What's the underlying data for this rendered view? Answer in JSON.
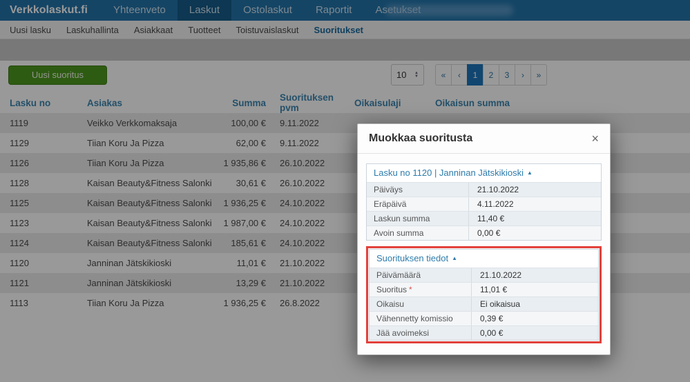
{
  "colors": {
    "navbar_bg": "#2374a9",
    "navbar_active_bg": "#175d89",
    "navbar_text": "#cfe2ef",
    "brand_text": "#ffffff",
    "subnav_bg": "#f4f4f4",
    "subnav_text": "#4a4a4a",
    "subnav_active_text": "#1b6b9e",
    "band_bg": "#c9c9c9",
    "content_bg": "#ffffff",
    "stripe_bg": "#ececec",
    "header_text": "#3d85b0",
    "row_text": "#4c4c4c",
    "button_green": "#4d981e",
    "button_green_border": "#3f7d17",
    "button_text": "#f2f7ec",
    "page_active_bg": "#1d76bb",
    "link_blue": "#2e7cab",
    "red_highlight": "#e2403a",
    "backdrop": "rgba(0,0,0,0.40)"
  },
  "topnav": {
    "brand": "Verkkolaskut.fi",
    "items": [
      {
        "label": "Yhteenveto",
        "active": false
      },
      {
        "label": "Laskut",
        "active": true
      },
      {
        "label": "Ostolaskut",
        "active": false
      },
      {
        "label": "Raportit",
        "active": false
      },
      {
        "label": "Asetukset",
        "active": false
      }
    ]
  },
  "subnav": {
    "items": [
      {
        "label": "Uusi lasku",
        "active": false
      },
      {
        "label": "Laskuhallinta",
        "active": false
      },
      {
        "label": "Asiakkaat",
        "active": false
      },
      {
        "label": "Tuotteet",
        "active": false
      },
      {
        "label": "Toistuvaislaskut",
        "active": false
      },
      {
        "label": "Suoritukset",
        "active": true
      }
    ]
  },
  "toolbar": {
    "new_payment_label": "Uusi suoritus",
    "page_size": "10"
  },
  "pagination": {
    "first": "«",
    "prev": "‹",
    "pages": [
      "1",
      "2",
      "3"
    ],
    "active_page": "1",
    "next": "›",
    "last": "»"
  },
  "table": {
    "columns": [
      "Lasku no",
      "Asiakas",
      "Summa",
      "Suorituksen pvm",
      "Oikaisulaji",
      "Oikaisun summa"
    ],
    "rows": [
      [
        "1119",
        "Veikko Verkkomaksaja",
        "100,00 €",
        "9.11.2022",
        "",
        ""
      ],
      [
        "1129",
        "Tiian Koru Ja Pizza",
        "62,00 €",
        "9.11.2022",
        "",
        ""
      ],
      [
        "1126",
        "Tiian Koru Ja Pizza",
        "1 935,86 €",
        "26.10.2022",
        "",
        ""
      ],
      [
        "1128",
        "Kaisan Beauty&Fitness Salonki",
        "30,61 €",
        "26.10.2022",
        "",
        ""
      ],
      [
        "1125",
        "Kaisan Beauty&Fitness Salonki",
        "1 936,25 €",
        "24.10.2022",
        "",
        ""
      ],
      [
        "1123",
        "Kaisan Beauty&Fitness Salonki",
        "1 987,00 €",
        "24.10.2022",
        "",
        ""
      ],
      [
        "1124",
        "Kaisan Beauty&Fitness Salonki",
        "185,61 €",
        "24.10.2022",
        "",
        ""
      ],
      [
        "1120",
        "Janninan Jätskikioski",
        "11,01 €",
        "21.10.2022",
        "",
        ""
      ],
      [
        "1121",
        "Janninan Jätskikioski",
        "13,29 €",
        "21.10.2022",
        "",
        ""
      ],
      [
        "1113",
        "Tiian Koru Ja Pizza",
        "1 936,25 €",
        "26.8.2022",
        "",
        ""
      ]
    ]
  },
  "modal": {
    "title": "Muokkaa suoritusta",
    "close_label": "×",
    "collapse_icon": "▲",
    "invoice_section": {
      "header": "Lasku no 1120 | Janninan Jätskikioski",
      "rows": [
        {
          "label": "Päiväys",
          "value": "21.10.2022"
        },
        {
          "label": "Eräpäivä",
          "value": "4.11.2022"
        },
        {
          "label": "Laskun summa",
          "value": "11,40 €"
        },
        {
          "label": "Avoin summa",
          "value": "0,00 €"
        }
      ]
    },
    "payment_section": {
      "header": "Suorituksen tiedot",
      "required_marker": "*",
      "rows": [
        {
          "label": "Päivämäärä",
          "value": "21.10.2022"
        },
        {
          "label": "Suoritus",
          "value": "11,01 €",
          "required": true
        },
        {
          "label": "Oikaisu",
          "value": "Ei oikaisua"
        },
        {
          "label": "Vähennetty komissio",
          "value": "0,39 €"
        },
        {
          "label": "Jää avoimeksi",
          "value": "0,00 €"
        }
      ]
    }
  }
}
